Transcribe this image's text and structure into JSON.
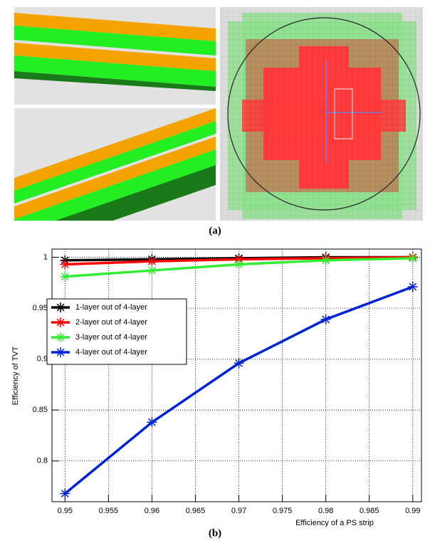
{
  "panel_labels": [
    "(a)",
    "(b)"
  ],
  "chart_data": {
    "type": "line",
    "x_label": "Efficiency of a PS strip",
    "y_label": "Efficiency of TVT",
    "x": [
      0.95,
      0.96,
      0.97,
      0.98,
      0.99
    ],
    "series": [
      {
        "name": "1-layer out of 4-layer",
        "color": "#000000",
        "values": [
          0.997,
          0.998,
          0.999,
          1.0,
          1.0
        ]
      },
      {
        "name": "2-layer out of 4-layer",
        "color": "#ff0000",
        "values": [
          0.993,
          0.996,
          0.998,
          0.999,
          1.0
        ]
      },
      {
        "name": "3-layer out of 4-layer",
        "color": "#33ee33",
        "values": [
          0.981,
          0.987,
          0.993,
          0.997,
          0.999
        ]
      },
      {
        "name": "4-layer out of 4-layer",
        "color": "#0022dd",
        "values": [
          0.768,
          0.838,
          0.896,
          0.939,
          0.971
        ]
      }
    ],
    "xlim": [
      0.9485,
      0.991
    ],
    "ylim": [
      0.76,
      1.008
    ],
    "xticks": [
      0.95,
      0.955,
      0.96,
      0.965,
      0.97,
      0.975,
      0.98,
      0.985,
      0.99
    ],
    "yticks": [
      0.8,
      0.85,
      0.9,
      0.95,
      1
    ],
    "grid": true,
    "legend": "upper-left"
  }
}
